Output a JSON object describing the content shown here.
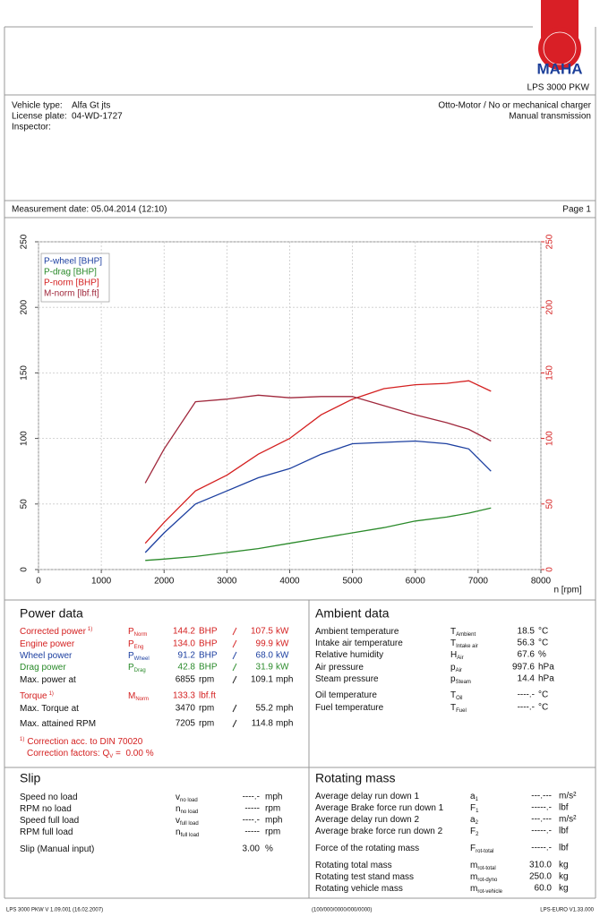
{
  "header": {
    "logo": "MAHA",
    "product": "LPS 3000 PKW"
  },
  "vehicle": {
    "rows": [
      {
        "label": "Vehicle type:",
        "value": "Alfa Gt jts"
      },
      {
        "label": "License plate:",
        "value": "04-WD-1727"
      },
      {
        "label": "Inspector:"
      }
    ],
    "engine": "Otto-Motor / No or mechanical charger",
    "transmission": "Manual transmission"
  },
  "measurement": {
    "date": "Measurement date: 05.04.2014 (12:10)",
    "page": "Page 1"
  },
  "chart_data": {
    "type": "line",
    "x": [
      1700,
      2000,
      2500,
      3000,
      3500,
      4000,
      4500,
      5000,
      5500,
      6000,
      6500,
      6850,
      7205
    ],
    "series": [
      {
        "name": "P-wheel [BHP]",
        "color": "#1c3fa0",
        "values": [
          13,
          28,
          50,
          60,
          70,
          77,
          88,
          96,
          97,
          98,
          96,
          92,
          75
        ]
      },
      {
        "name": "P-drag [BHP]",
        "color": "#2a8a2a",
        "values": [
          7,
          8,
          10,
          13,
          16,
          20,
          24,
          28,
          32,
          37,
          40,
          43,
          47
        ]
      },
      {
        "name": "P-norm [BHP]",
        "color": "#d42020",
        "values": [
          20,
          36,
          60,
          72,
          88,
          100,
          118,
          130,
          138,
          141,
          142,
          144,
          136
        ]
      },
      {
        "name": "M-norm [lbf.ft]",
        "color": "#a0283c",
        "axis": "y2",
        "values": [
          66,
          92,
          128,
          130,
          133,
          131,
          132,
          132,
          125,
          118,
          112,
          107,
          98
        ]
      }
    ],
    "xlabel": "n [rpm]",
    "xlim": [
      0,
      8000
    ],
    "xticks": [
      0,
      1000,
      2000,
      3000,
      4000,
      5000,
      6000,
      7000,
      8000
    ],
    "ylim": [
      0,
      250
    ],
    "yticks": [
      0,
      50,
      100,
      150,
      200,
      250
    ],
    "y2lim": [
      0,
      250
    ],
    "y2ticks": [
      0,
      50,
      100,
      150,
      200,
      250
    ],
    "y2color": "#d42020",
    "grid": true,
    "legend": "upper left"
  },
  "power_data": {
    "title": "Power data",
    "rows": [
      {
        "label": "Corrected power",
        "note": "1)",
        "symbol": "P",
        "sub": "Norm",
        "value": "144.2",
        "unit": "BHP",
        "value2": "107.5",
        "unit2": "kW",
        "color": "#d42020"
      },
      {
        "label": "Engine power",
        "symbol": "P",
        "sub": "Eng",
        "value": "134.0",
        "unit": "BHP",
        "value2": "99.9",
        "unit2": "kW",
        "color": "#d42020"
      },
      {
        "label": "Wheel power",
        "symbol": "P",
        "sub": "Wheel",
        "value": "91.2",
        "unit": "BHP",
        "value2": "68.0",
        "unit2": "kW",
        "color": "#1c3fa0"
      },
      {
        "label": "Drag power",
        "symbol": "P",
        "sub": "Drag",
        "value": "42.8",
        "unit": "BHP",
        "value2": "31.9",
        "unit2": "kW",
        "color": "#2a8a2a"
      },
      {
        "label": "Max. power at",
        "value": "6855",
        "unit": "rpm",
        "value2": "109.1",
        "unit2": "mph"
      },
      {
        "label": "Torque",
        "note": "1)",
        "symbol": "M",
        "sub": "Norm",
        "value": "133.3",
        "unit": "lbf.ft",
        "color": "#d42020"
      },
      {
        "label": "Max. Torque at",
        "value": "3470",
        "unit": "rpm",
        "value2": "55.2",
        "unit2": "mph"
      },
      {
        "label": "Max. attained RPM",
        "value": "7205",
        "unit": "rpm",
        "value2": "114.8",
        "unit2": "mph"
      }
    ],
    "footnote": {
      "note": "1)",
      "text": "Correction acc. to DIN 70020"
    },
    "correction": {
      "label": "Correction factors: Q",
      "sub": "V",
      "tail": " =  0.00 %"
    }
  },
  "ambient_data": {
    "title": "Ambient data",
    "rows": [
      {
        "label": "Ambient temperature",
        "symbol": "T",
        "sub": "Ambient",
        "value": "18.5",
        "unit": "°C"
      },
      {
        "label": "Intake air temperature",
        "symbol": "T",
        "sub": "Intake air",
        "value": "56.3",
        "unit": "°C"
      },
      {
        "label": "Relative humidity",
        "symbol": "H",
        "sub": "Air",
        "value": "67.6",
        "unit": "%"
      },
      {
        "label": "Air pressure",
        "symbol": "p",
        "sub": "Air",
        "value": "997.6",
        "unit": "hPa"
      },
      {
        "label": "Steam pressure",
        "symbol": "p",
        "sub": "Steam",
        "value": "14.4",
        "unit": "hPa"
      },
      {
        "label": "Oil temperature",
        "symbol": "T",
        "sub": "Oil",
        "value": "----.-",
        "unit": "°C"
      },
      {
        "label": "Fuel temperature",
        "symbol": "T",
        "sub": "Fuel",
        "value": "----.-",
        "unit": "°C"
      }
    ]
  },
  "slip": {
    "title": "Slip",
    "rows": [
      {
        "label": "Speed no load",
        "symbol": "v",
        "sub": "no load",
        "value": "----.-",
        "unit": "mph"
      },
      {
        "label": "RPM no load",
        "symbol": "n",
        "sub": "no load",
        "value": "-----",
        "unit": "rpm"
      },
      {
        "label": "Speed full load",
        "symbol": "v",
        "sub": "full load",
        "value": "----.-",
        "unit": "mph"
      },
      {
        "label": "RPM full load",
        "symbol": "n",
        "sub": "full load",
        "value": "-----",
        "unit": "rpm"
      },
      {
        "label": "Slip (Manual input)",
        "value": "3.00",
        "unit": "%"
      }
    ]
  },
  "rotating_mass": {
    "title": "Rotating mass",
    "rows": [
      {
        "label": "Average delay run down 1",
        "symbol": "a",
        "sub": "1",
        "value": "---.---",
        "unit": "m/s²"
      },
      {
        "label": "Average Brake force run down 1",
        "symbol": "F",
        "sub": "1",
        "value": "-----.-",
        "unit": "lbf"
      },
      {
        "label": "Average delay run down 2",
        "symbol": "a",
        "sub": "2",
        "value": "---.---",
        "unit": "m/s²"
      },
      {
        "label": "Average brake force run down 2",
        "symbol": "F",
        "sub": "2",
        "value": "-----.-",
        "unit": "lbf"
      },
      {
        "label": "Force of the rotating mass",
        "symbol": "F",
        "sub": "rot-total",
        "value": "-----.-",
        "unit": "lbf"
      },
      {
        "label": "Rotating total mass",
        "symbol": "m",
        "sub": "rot-total",
        "value": "310.0",
        "unit": "kg"
      },
      {
        "label": "Rotating test stand mass",
        "symbol": "m",
        "sub": "rot-dyno",
        "value": "250.0",
        "unit": "kg"
      },
      {
        "label": "Rotating vehicle mass",
        "symbol": "m",
        "sub": "rot-vehicle",
        "value": "60.0",
        "unit": "kg"
      }
    ]
  },
  "footer": {
    "left": "LPS 3000 PKW V 1.09.001 (16.02.2007)",
    "center": "(100/000/0000/000/0000)",
    "right": "LPS-EURO V1.33.000"
  }
}
